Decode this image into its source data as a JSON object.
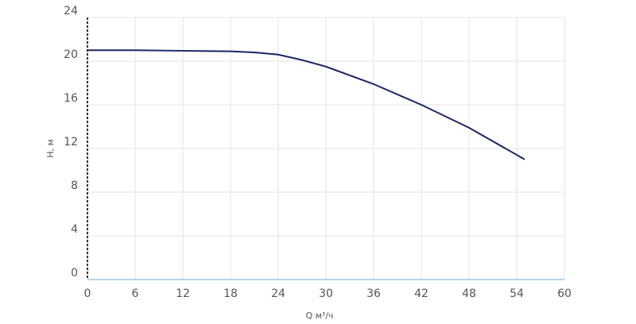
{
  "chart_data": {
    "type": "line",
    "x_label": "Q м³/ч",
    "y_label": "H, м",
    "x": [
      0,
      6,
      12,
      18,
      21,
      24,
      27,
      30,
      36,
      42,
      48,
      55
    ],
    "series": [
      {
        "name": "H",
        "color": "#1c2566",
        "values": [
          21,
          21,
          20.95,
          20.9,
          20.8,
          20.6,
          20.1,
          19.5,
          17.9,
          16.0,
          13.9,
          11.0
        ]
      }
    ],
    "xlim": [
      0,
      60
    ],
    "xticks": [
      0,
      6,
      12,
      18,
      24,
      30,
      36,
      42,
      48,
      54,
      60
    ],
    "ylim": [
      0,
      24
    ],
    "yticks": [
      0,
      4,
      8,
      12,
      16,
      20,
      24
    ],
    "grid": true
  }
}
